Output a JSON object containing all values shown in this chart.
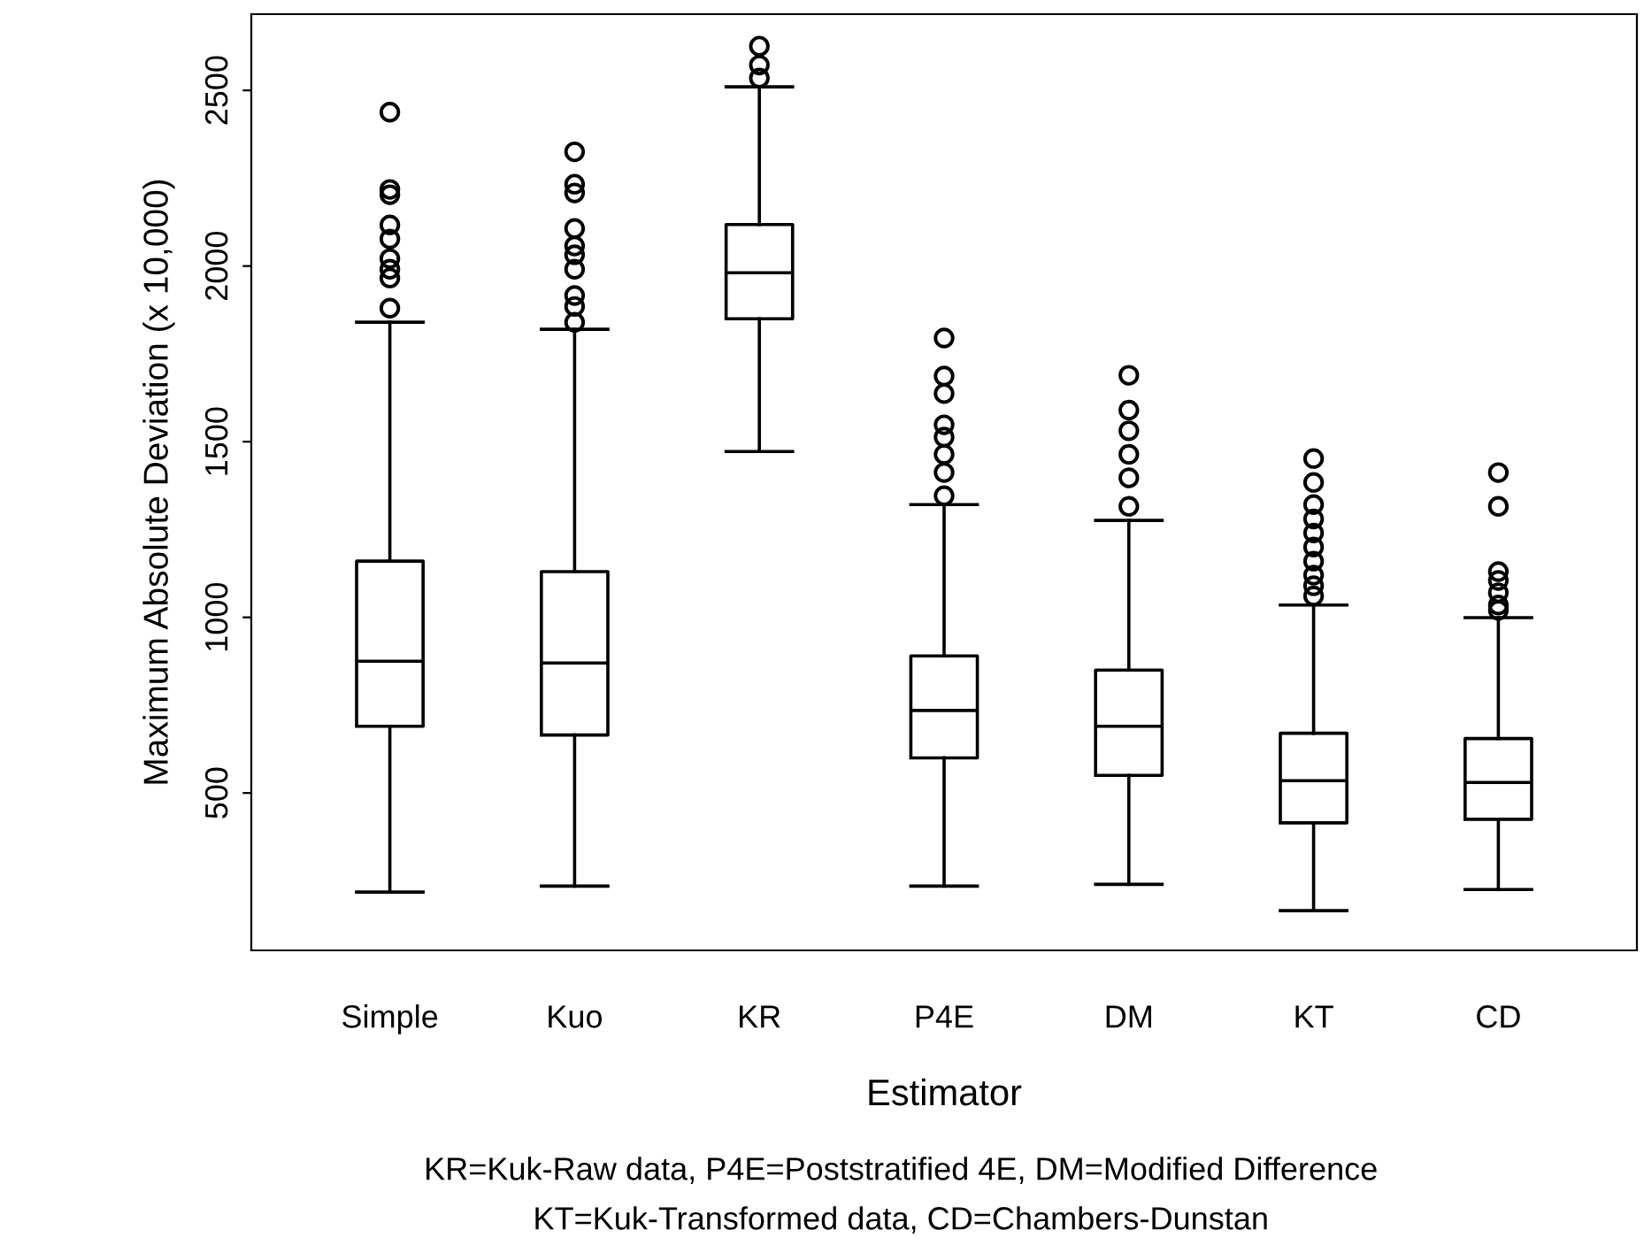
{
  "chart_data": {
    "type": "box",
    "xlabel": "Estimator",
    "ylabel": "Maximum Absolute Deviation (x 10,000)",
    "categories": [
      "Simple",
      "Kuo",
      "KR",
      "P4E",
      "DM",
      "KT",
      "CD"
    ],
    "boxes": [
      {
        "low": 218,
        "q1": 690,
        "median": 875,
        "q3": 1160,
        "high": 1840,
        "outliers": [
          2438,
          2218,
          2203,
          2117,
          2077,
          2021,
          1991,
          1966,
          1880
        ]
      },
      {
        "low": 235,
        "q1": 665,
        "median": 870,
        "q3": 1130,
        "high": 1820,
        "outliers": [
          2325,
          2233,
          2208,
          2107,
          2057,
          2032,
          1991,
          1916,
          1885,
          1840
        ]
      },
      {
        "low": 1472,
        "q1": 1850,
        "median": 1981,
        "q3": 2118,
        "high": 2510,
        "outliers": [
          2626,
          2572,
          2535
        ]
      },
      {
        "low": 235,
        "q1": 600,
        "median": 735,
        "q3": 890,
        "high": 1321,
        "outliers": [
          1795,
          1687,
          1637,
          1548,
          1513,
          1464,
          1412,
          1346
        ]
      },
      {
        "low": 240,
        "q1": 550,
        "median": 690,
        "q3": 850,
        "high": 1276,
        "outliers": [
          1689,
          1590,
          1531,
          1464,
          1397,
          1316
        ]
      },
      {
        "low": 165,
        "q1": 415,
        "median": 535,
        "q3": 670,
        "high": 1035,
        "outliers": [
          1452,
          1384,
          1321,
          1280,
          1240,
          1200,
          1160,
          1120,
          1090,
          1061
        ]
      },
      {
        "low": 225,
        "q1": 425,
        "median": 530,
        "q3": 655,
        "high": 999,
        "outliers": [
          1412,
          1316,
          1130,
          1105,
          1070,
          1035,
          1020
        ]
      }
    ],
    "ylim": [
      52,
      2717
    ],
    "yticks": [
      500,
      1000,
      1500,
      2000,
      2500
    ],
    "grid": false,
    "marker": "circle",
    "annotations": [
      "KR=Kuk-Raw data, P4E=Poststratified 4E, DM=Modified Difference",
      "KT=Kuk-Transformed data, CD=Chambers-Dunstan"
    ]
  }
}
